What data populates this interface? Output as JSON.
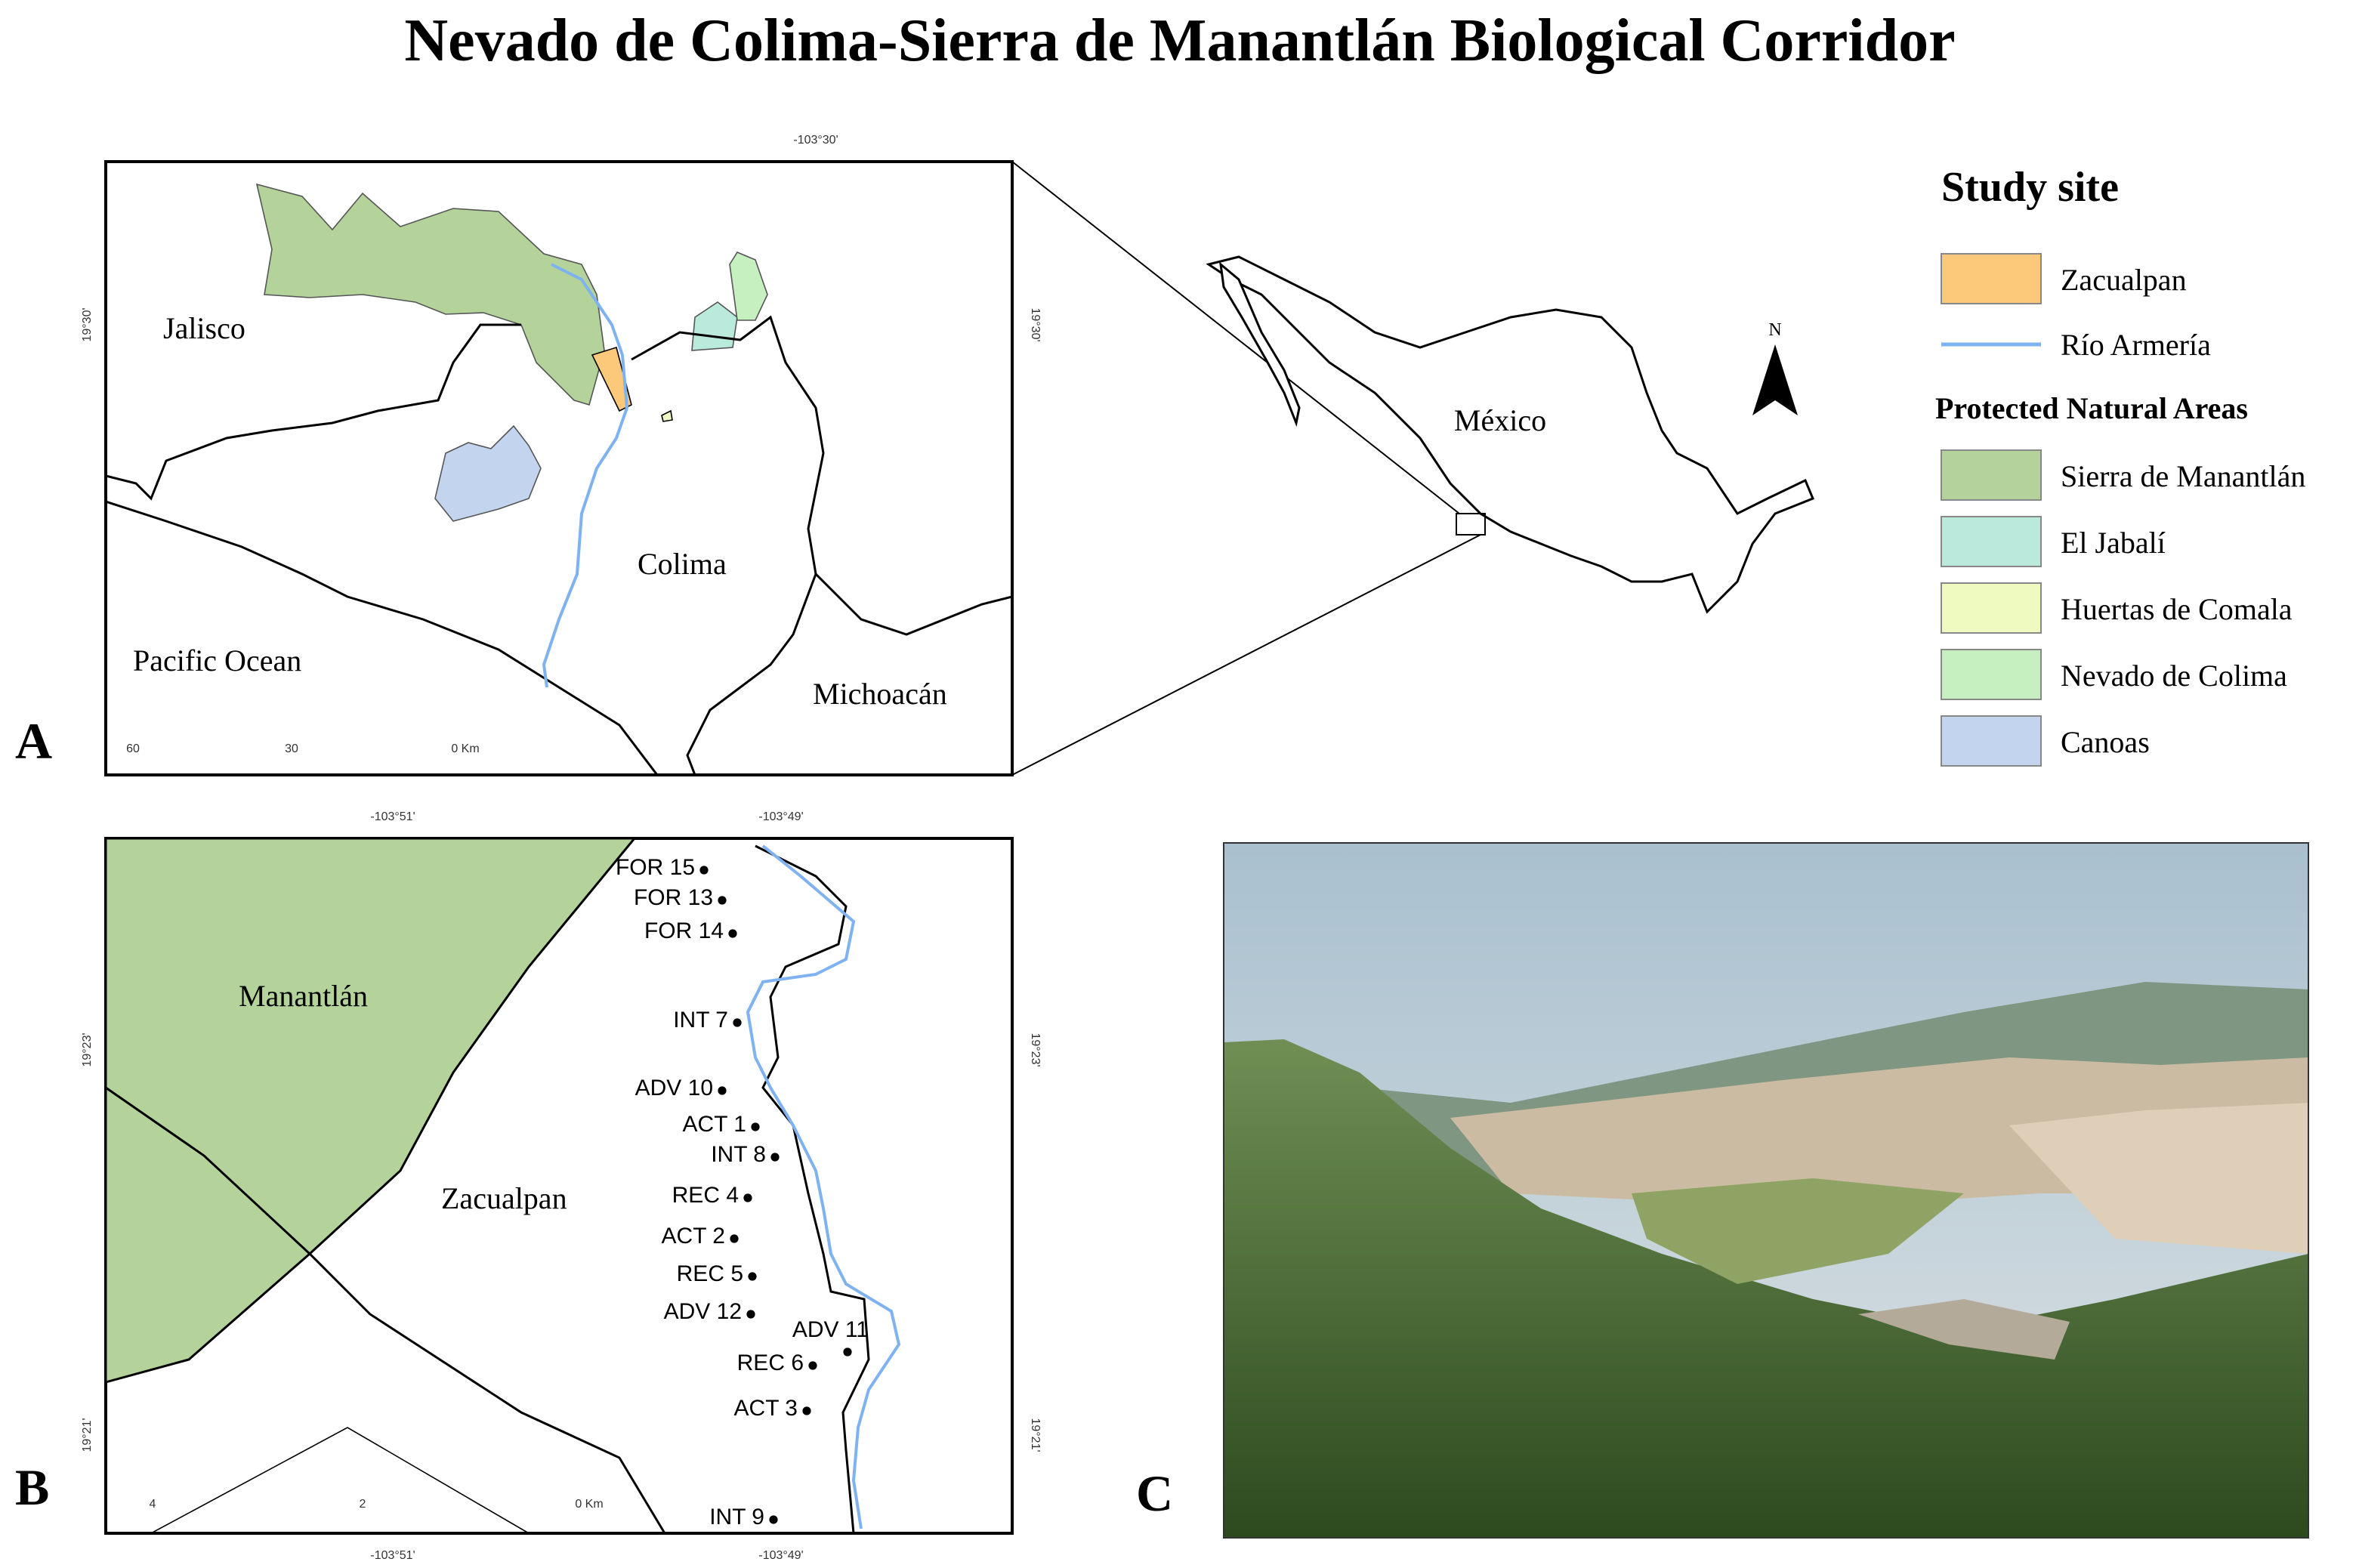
{
  "title": "Nevado de Colima-Sierra de Manantlán Biological Corridor",
  "panels": {
    "a": "A",
    "b": "B",
    "c": "C"
  },
  "map_a": {
    "labels": [
      "Jalisco",
      "Colima",
      "Pacific Ocean",
      "Michoacán"
    ],
    "coords": {
      "top": "-103°30'",
      "left": "19°30'",
      "right": "19°30'"
    },
    "scale": [
      "60",
      "30",
      "0 Km"
    ]
  },
  "inset": {
    "label": "México",
    "north": "N"
  },
  "legend": {
    "title": "Study site",
    "study_items": [
      "Zacualpan",
      "Río Armería"
    ],
    "subtitle": "Protected Natural Areas",
    "areas": [
      "Sierra de Manantlán",
      "El Jabalí",
      "Huertas de Comala",
      "Nevado de Colima",
      "Canoas"
    ]
  },
  "map_b": {
    "labels": [
      "Manantlán",
      "Zacualpan"
    ],
    "coords": {
      "top": [
        "-103°51'",
        "-103°49'"
      ],
      "bottom": [
        "-103°51'",
        "-103°49'"
      ],
      "left": [
        "19°23'",
        "19°21'"
      ],
      "right": [
        "19°23'",
        "19°21'"
      ]
    },
    "scale": [
      "4",
      "2",
      "0 Km"
    ],
    "sites": [
      "FOR 15",
      "FOR 13",
      "FOR 14",
      "INT 7",
      "ADV 10",
      "ACT 1",
      "INT 8",
      "REC 4",
      "ACT 2",
      "REC 5",
      "ADV 12",
      "ADV 11",
      "REC 6",
      "ACT 3",
      "INT 9"
    ]
  }
}
